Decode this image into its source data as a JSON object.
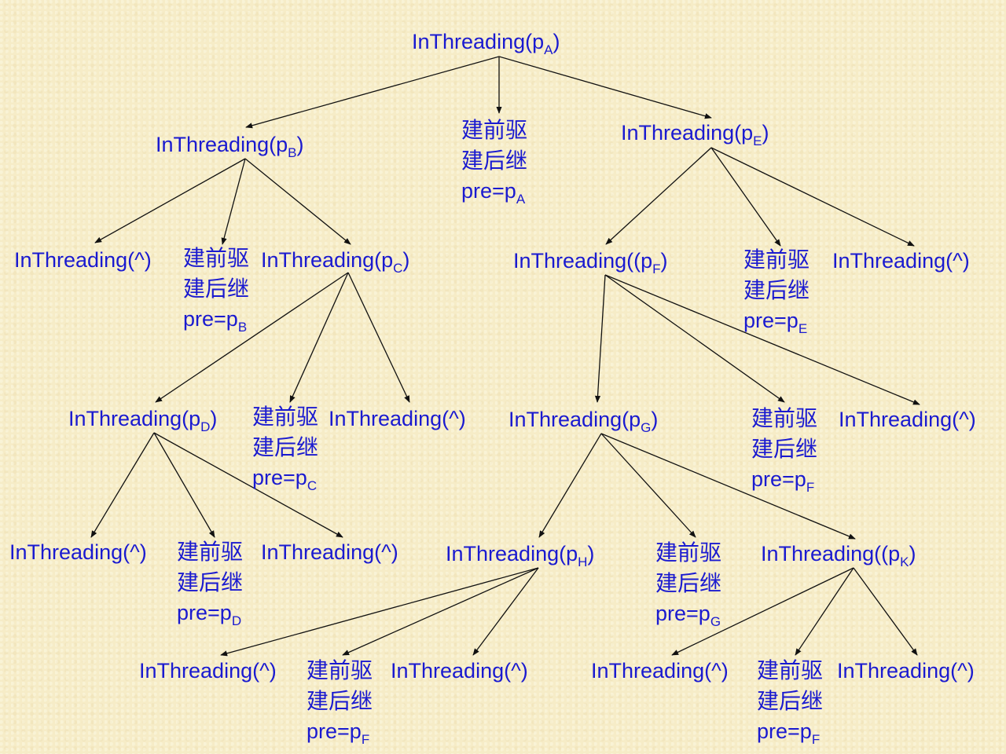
{
  "colors": {
    "text": "#1a1ad0",
    "edge": "#111111",
    "background": "#f6ecc7"
  },
  "labels": {
    "build_pred": "建前驱",
    "build_succ": "建后继",
    "pre_prefix": "pre=p"
  },
  "nodes": [
    {
      "id": "A",
      "prefix": "InThreading(p",
      "sub": "A",
      "suffix": ")"
    },
    {
      "id": "B",
      "prefix": "InThreading(p",
      "sub": "B",
      "suffix": ")"
    },
    {
      "id": "E",
      "prefix": "InThreading(p",
      "sub": "E",
      "suffix": ")"
    },
    {
      "id": "B-nil",
      "prefix": "InThreading(^)",
      "sub": "",
      "suffix": ""
    },
    {
      "id": "C",
      "prefix": "InThreading(p",
      "sub": "C",
      "suffix": ")"
    },
    {
      "id": "F",
      "prefix": "InThreading((p",
      "sub": "F",
      "suffix": ")"
    },
    {
      "id": "E-nil",
      "prefix": "InThreading(^)",
      "sub": "",
      "suffix": ""
    },
    {
      "id": "D",
      "prefix": "InThreading(p",
      "sub": "D",
      "suffix": ")"
    },
    {
      "id": "C-nil",
      "prefix": "InThreading(^)",
      "sub": "",
      "suffix": ""
    },
    {
      "id": "G",
      "prefix": "InThreading(p",
      "sub": "G",
      "suffix": ")"
    },
    {
      "id": "F-nil",
      "prefix": "InThreading(^)",
      "sub": "",
      "suffix": ""
    },
    {
      "id": "D-nil-left",
      "prefix": "InThreading(^)",
      "sub": "",
      "suffix": ""
    },
    {
      "id": "D-nil-right",
      "prefix": "InThreading(^)",
      "sub": "",
      "suffix": ""
    },
    {
      "id": "H",
      "prefix": "InThreading(p",
      "sub": "H",
      "suffix": ")"
    },
    {
      "id": "K",
      "prefix": "InThreading((p",
      "sub": "K",
      "suffix": ")"
    },
    {
      "id": "H-nil-left",
      "prefix": "InThreading(^)",
      "sub": "",
      "suffix": ""
    },
    {
      "id": "H-nil-right",
      "prefix": "InThreading(^)",
      "sub": "",
      "suffix": ""
    },
    {
      "id": "K-nil-left",
      "prefix": "InThreading(^)",
      "sub": "",
      "suffix": ""
    },
    {
      "id": "K-nil-right",
      "prefix": "InThreading(^)",
      "sub": "",
      "suffix": ""
    }
  ],
  "actions": [
    {
      "id": "A",
      "pre_sub": "A"
    },
    {
      "id": "B",
      "pre_sub": "B"
    },
    {
      "id": "E",
      "pre_sub": "E"
    },
    {
      "id": "C",
      "pre_sub": "C"
    },
    {
      "id": "F",
      "pre_sub": "F"
    },
    {
      "id": "D",
      "pre_sub": "D"
    },
    {
      "id": "G",
      "pre_sub": "G"
    },
    {
      "id": "H",
      "pre_sub": "F"
    },
    {
      "id": "K",
      "pre_sub": "F"
    }
  ],
  "edges": [
    {
      "from": "A",
      "to": "B"
    },
    {
      "from": "A",
      "to": "act-A"
    },
    {
      "from": "A",
      "to": "E"
    },
    {
      "from": "B",
      "to": "B-nil"
    },
    {
      "from": "B",
      "to": "act-B"
    },
    {
      "from": "B",
      "to": "C"
    },
    {
      "from": "E",
      "to": "F"
    },
    {
      "from": "E",
      "to": "act-E"
    },
    {
      "from": "E",
      "to": "E-nil"
    },
    {
      "from": "C",
      "to": "D"
    },
    {
      "from": "C",
      "to": "act-C"
    },
    {
      "from": "C",
      "to": "C-nil"
    },
    {
      "from": "F",
      "to": "G"
    },
    {
      "from": "F",
      "to": "act-F"
    },
    {
      "from": "F",
      "to": "F-nil"
    },
    {
      "from": "D",
      "to": "D-nil-left"
    },
    {
      "from": "D",
      "to": "act-D"
    },
    {
      "from": "D",
      "to": "D-nil-right"
    },
    {
      "from": "G",
      "to": "H"
    },
    {
      "from": "G",
      "to": "act-G"
    },
    {
      "from": "G",
      "to": "K"
    },
    {
      "from": "H",
      "to": "H-nil-left"
    },
    {
      "from": "H",
      "to": "act-H"
    },
    {
      "from": "H",
      "to": "H-nil-right"
    },
    {
      "from": "K",
      "to": "K-nil-left"
    },
    {
      "from": "K",
      "to": "act-K"
    },
    {
      "from": "K",
      "to": "K-nil-right"
    }
  ]
}
